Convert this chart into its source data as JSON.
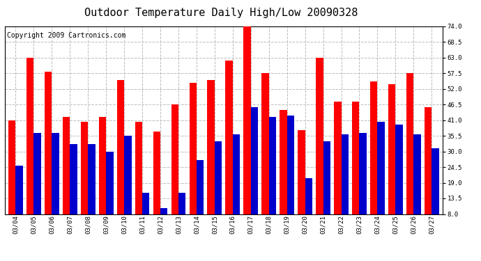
{
  "title": "Outdoor Temperature Daily High/Low 20090328",
  "copyright": "Copyright 2009 Cartronics.com",
  "dates": [
    "03/04",
    "03/05",
    "03/06",
    "03/07",
    "03/08",
    "03/09",
    "03/10",
    "03/11",
    "03/12",
    "03/13",
    "03/14",
    "03/15",
    "03/16",
    "03/17",
    "03/18",
    "03/19",
    "03/20",
    "03/21",
    "03/22",
    "03/23",
    "03/24",
    "03/25",
    "03/26",
    "03/27"
  ],
  "highs": [
    41.0,
    63.0,
    58.0,
    42.0,
    40.5,
    42.0,
    55.0,
    40.5,
    37.0,
    46.5,
    54.0,
    55.0,
    62.0,
    75.0,
    57.5,
    44.5,
    37.5,
    63.0,
    47.5,
    47.5,
    54.5,
    53.5,
    57.5,
    45.5
  ],
  "lows": [
    25.0,
    36.5,
    36.5,
    32.5,
    32.5,
    30.0,
    35.5,
    15.5,
    10.0,
    15.5,
    27.0,
    33.5,
    36.0,
    45.5,
    42.0,
    42.5,
    20.5,
    33.5,
    36.0,
    36.5,
    40.5,
    39.5,
    36.0,
    31.0
  ],
  "high_color": "#ff0000",
  "low_color": "#0000cc",
  "ylim": [
    8.0,
    74.0
  ],
  "yticks": [
    8.0,
    13.5,
    19.0,
    24.5,
    30.0,
    35.5,
    41.0,
    46.5,
    52.0,
    57.5,
    63.0,
    68.5,
    74.0
  ],
  "bg_color": "#ffffff",
  "grid_color": "#bbbbbb",
  "title_fontsize": 11,
  "copyright_fontsize": 7,
  "bar_width": 0.4
}
